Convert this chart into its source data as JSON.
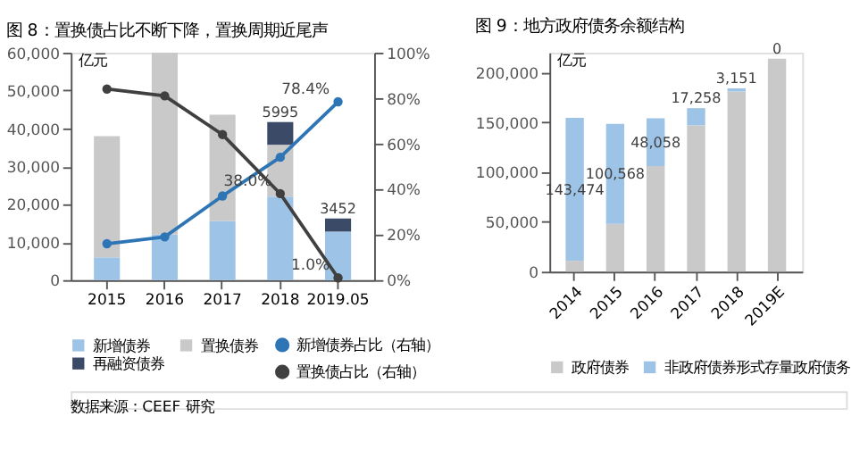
{
  "chart_data": [
    {
      "type": "bar",
      "title": "图 8：置换债占比不断下降，置换周期近尾声",
      "ylabel": "亿元",
      "stacked": true,
      "legend": "bottom",
      "marker": "circle",
      "line_style": "solid",
      "categories": [
        "2015",
        "2016",
        "2017",
        "2018",
        "2019.05"
      ],
      "ylim": [
        0,
        60000
      ],
      "yticks": [
        {
          "value": 0,
          "label": "0"
        },
        {
          "value": 10000,
          "label": "10,000"
        },
        {
          "value": 20000,
          "label": "20,000"
        },
        {
          "value": 30000,
          "label": "30,000"
        },
        {
          "value": 40000,
          "label": "40,000"
        },
        {
          "value": 50000,
          "label": "50,000"
        },
        {
          "value": 60000,
          "label": "60,000"
        }
      ],
      "y2lim": [
        0,
        100
      ],
      "y2ticks": [
        {
          "value": 0,
          "label": "0%"
        },
        {
          "value": 20,
          "label": "20%"
        },
        {
          "value": 40,
          "label": "40%"
        },
        {
          "value": 60,
          "label": "60%"
        },
        {
          "value": 80,
          "label": "80%"
        },
        {
          "value": 100,
          "label": "100%"
        }
      ],
      "series": [
        {
          "name": "新增债券",
          "color": "#9dc3e6",
          "values": [
            6000,
            12000,
            15600,
            22000,
            12800
          ]
        },
        {
          "name": "置换债券",
          "color": "#c9c9c9",
          "values": [
            32000,
            48000,
            28000,
            13700,
            null
          ]
        },
        {
          "name": "再融资债券",
          "color": "#3b4a66",
          "values": [
            null,
            null,
            null,
            5995,
            3452
          ],
          "value_labels": [
            null,
            null,
            null,
            "5995",
            "3452"
          ]
        },
        {
          "name": "新增债券占比（右轴）",
          "type": "line",
          "axis": "y2",
          "color": "#2e75b6",
          "values": [
            16,
            19,
            37,
            54,
            78.4
          ],
          "value_labels": [
            null,
            null,
            null,
            null,
            "78.4%"
          ]
        },
        {
          "name": "置换债占比（右轴）",
          "type": "line",
          "axis": "y2",
          "color": "#404040",
          "values": [
            84,
            81,
            64,
            38.0,
            1.0
          ],
          "value_labels": [
            null,
            null,
            null,
            "38.0%",
            "1.0%"
          ]
        }
      ],
      "annotations": [
        "数据来源：CEEF 研究"
      ]
    },
    {
      "type": "bar",
      "title": "图 9：地方政府债务余额结构",
      "ylabel": "亿元",
      "stacked": true,
      "legend": "bottom",
      "categories": [
        "2014",
        "2015",
        "2016",
        "2017",
        "2018",
        "2019E"
      ],
      "ylim": [
        0,
        220000
      ],
      "yticks": [
        {
          "value": 0,
          "label": "0"
        },
        {
          "value": 50000,
          "label": "50,000"
        },
        {
          "value": 100000,
          "label": "100,000"
        },
        {
          "value": 150000,
          "label": "150,000"
        },
        {
          "value": 200000,
          "label": "200,000"
        }
      ],
      "series": [
        {
          "name": "政府债券",
          "color": "#c9c9c9",
          "values": [
            11000,
            48000,
            106000,
            147000,
            181000,
            214000
          ]
        },
        {
          "name": "非政府债券形式存量政府债务",
          "color": "#9dc3e6",
          "values": [
            143474,
            100568,
            48058,
            17258,
            3151,
            0
          ],
          "value_labels": [
            "143,474",
            "100,568",
            "48,058",
            "17,258",
            "3,151",
            "0"
          ]
        }
      ]
    }
  ]
}
